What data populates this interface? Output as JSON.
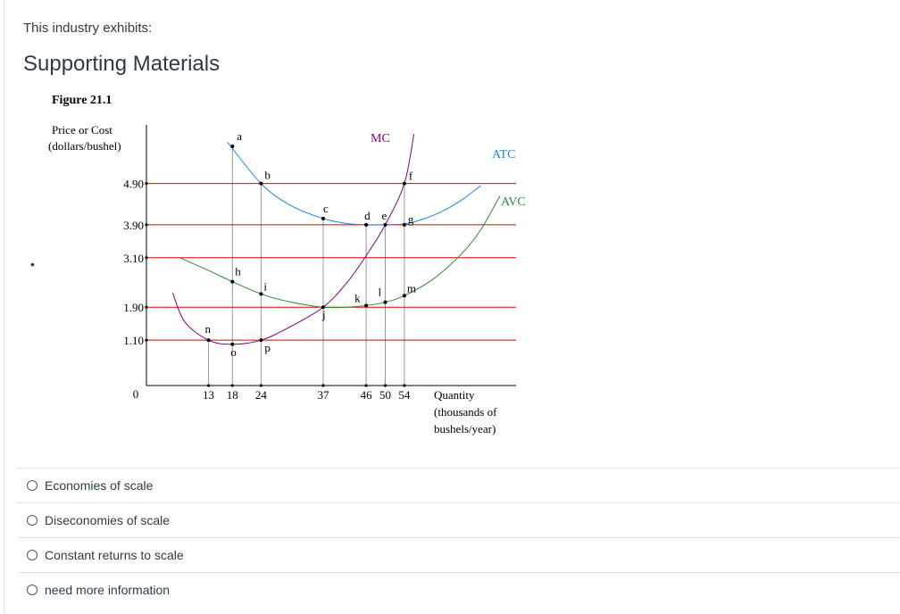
{
  "question": {
    "text": "This industry exhibits:"
  },
  "supporting": {
    "title": "Supporting Materials"
  },
  "figure": {
    "caption": "Figure 21.1"
  },
  "chart_data": {
    "type": "line",
    "title": "Figure 21.1",
    "ylabel": [
      "Price or Cost",
      "(dollars/bushel)"
    ],
    "xlabel": [
      "Quantity",
      "(thousands of",
      "bushels/year)"
    ],
    "xlim": [
      0,
      70
    ],
    "ylim": [
      0,
      6
    ],
    "x_ticks": [
      13,
      18,
      24,
      37,
      46,
      50,
      54
    ],
    "x_tick_labels": [
      "13",
      "18",
      "24",
      "37",
      "46",
      "50",
      "54"
    ],
    "y_ticks": [
      4.9,
      3.9,
      3.1,
      1.9,
      1.1,
      0
    ],
    "y_tick_labels": [
      "4.90",
      "3.90",
      "3.10",
      "1.90",
      "1.10",
      "0"
    ],
    "price_lines": [
      4.9,
      3.9,
      3.1,
      1.9,
      1.1
    ],
    "series": [
      {
        "name": "ATC",
        "color": "#1a86d9",
        "x": [
          17,
          24,
          30,
          37,
          42,
          46,
          50,
          54,
          58,
          62,
          66,
          70
        ],
        "y": [
          5.9,
          4.9,
          4.38,
          4.05,
          3.93,
          3.9,
          3.9,
          3.92,
          4.04,
          4.23,
          4.5,
          4.85
        ]
      },
      {
        "name": "AVC",
        "color": "#2f8a2f",
        "x": [
          7,
          13,
          18,
          24,
          30,
          37,
          42,
          46,
          50,
          54,
          60,
          66,
          70,
          74
        ],
        "y": [
          3.1,
          2.79,
          2.52,
          2.22,
          2.03,
          1.9,
          1.9,
          1.94,
          2.02,
          2.18,
          2.58,
          3.2,
          3.78,
          4.6
        ]
      },
      {
        "name": "MC",
        "color": "#800080",
        "x": [
          5.5,
          8,
          13,
          18,
          24,
          30,
          37,
          42,
          46,
          50,
          54,
          56
        ],
        "y": [
          2.25,
          1.55,
          1.1,
          1.0,
          1.1,
          1.42,
          1.9,
          2.5,
          3.15,
          3.9,
          4.9,
          6.1
        ]
      }
    ],
    "points": [
      {
        "label": "a",
        "x": 18,
        "y": 5.8
      },
      {
        "label": "b",
        "x": 24,
        "y": 4.9
      },
      {
        "label": "c",
        "x": 37,
        "y": 4.05
      },
      {
        "label": "d",
        "x": 46,
        "y": 3.9
      },
      {
        "label": "e",
        "x": 50,
        "y": 3.9
      },
      {
        "label": "f",
        "x": 54,
        "y": 4.9
      },
      {
        "label": "g",
        "x": 54,
        "y": 3.9
      },
      {
        "label": "h",
        "x": 18,
        "y": 2.52
      },
      {
        "label": "i",
        "x": 24,
        "y": 2.22
      },
      {
        "label": "j",
        "x": 37,
        "y": 1.9
      },
      {
        "label": "k",
        "x": 46,
        "y": 1.94
      },
      {
        "label": "l",
        "x": 50,
        "y": 2.02
      },
      {
        "label": "m",
        "x": 54,
        "y": 2.18
      },
      {
        "label": "n",
        "x": 13,
        "y": 1.1
      },
      {
        "label": "o",
        "x": 18,
        "y": 1.0
      },
      {
        "label": "p",
        "x": 24,
        "y": 1.1
      }
    ]
  },
  "answers": [
    {
      "label": "Economies of scale"
    },
    {
      "label": "Diseconomies of scale"
    },
    {
      "label": "Constant returns to scale"
    },
    {
      "label": "need more information"
    }
  ]
}
